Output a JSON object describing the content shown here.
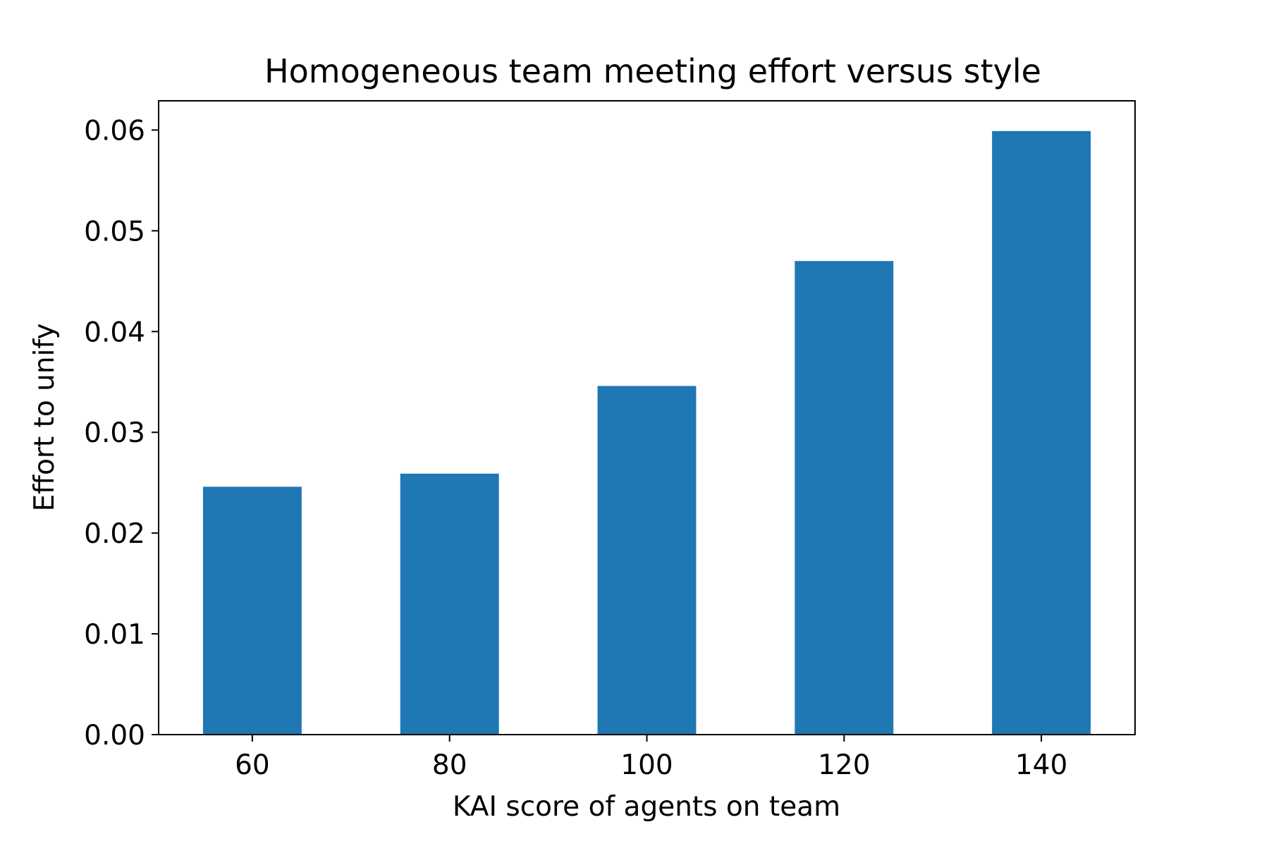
{
  "chart_data": {
    "type": "bar",
    "title": "Homogeneous team meeting effort versus style",
    "xlabel": "KAI score of agents on team",
    "ylabel": "Effort to unify",
    "categories": [
      60,
      80,
      100,
      120,
      140
    ],
    "category_labels": [
      "60",
      "80",
      "100",
      "120",
      "140"
    ],
    "values": [
      0.0246,
      0.0259,
      0.0346,
      0.047,
      0.0599
    ],
    "bar_width": 10,
    "xlim": [
      50.5,
      149.5
    ],
    "ylim": [
      0,
      0.0629
    ],
    "yticks": [
      0.0,
      0.01,
      0.02,
      0.03,
      0.04,
      0.05,
      0.06
    ],
    "ytick_labels": [
      "0.00",
      "0.01",
      "0.02",
      "0.03",
      "0.04",
      "0.05",
      "0.06"
    ],
    "bar_color": "#1f77b4",
    "grid": false,
    "legend": false
  }
}
